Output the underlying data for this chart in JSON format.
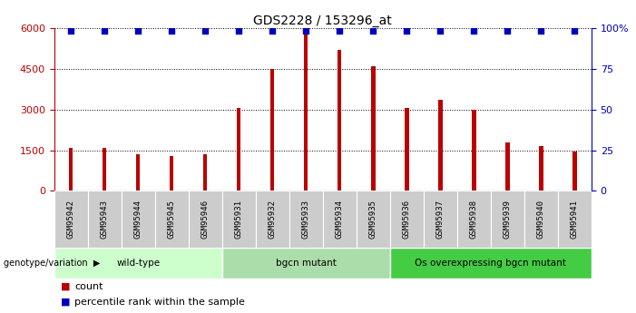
{
  "title": "GDS2228 / 153296_at",
  "samples": [
    "GSM95942",
    "GSM95943",
    "GSM95944",
    "GSM95945",
    "GSM95946",
    "GSM95931",
    "GSM95932",
    "GSM95933",
    "GSM95934",
    "GSM95935",
    "GSM95936",
    "GSM95937",
    "GSM95938",
    "GSM95939",
    "GSM95940",
    "GSM95941"
  ],
  "counts": [
    1600,
    1580,
    1350,
    1280,
    1350,
    3050,
    4500,
    5900,
    5200,
    4600,
    3050,
    3350,
    3000,
    1800,
    1650,
    1450
  ],
  "dot_values": [
    5900,
    5900,
    5900,
    5900,
    5900,
    5900,
    5900,
    5900,
    5900,
    5900,
    5900,
    5900,
    5900,
    5900,
    5900,
    5900
  ],
  "groups": [
    {
      "label": "wild-type",
      "start": 0,
      "end": 5,
      "color": "#ccffcc"
    },
    {
      "label": "bgcn mutant",
      "start": 5,
      "end": 10,
      "color": "#aaddaa"
    },
    {
      "label": "Os overexpressing bgcn mutant",
      "start": 10,
      "end": 16,
      "color": "#44cc44"
    }
  ],
  "bar_color": "#bb0000",
  "dot_color": "#0000bb",
  "ylim_left": [
    0,
    6000
  ],
  "ylim_right": [
    0,
    100
  ],
  "yticks_left": [
    0,
    1500,
    3000,
    4500,
    6000
  ],
  "yticks_right": [
    0,
    25,
    50,
    75,
    100
  ],
  "yticklabels_right": [
    "0",
    "25",
    "50",
    "75",
    "100%"
  ],
  "background_color": "#ffffff",
  "legend_count_label": "count",
  "legend_pct_label": "percentile rank within the sample",
  "group_label_prefix": "genotype/variation"
}
